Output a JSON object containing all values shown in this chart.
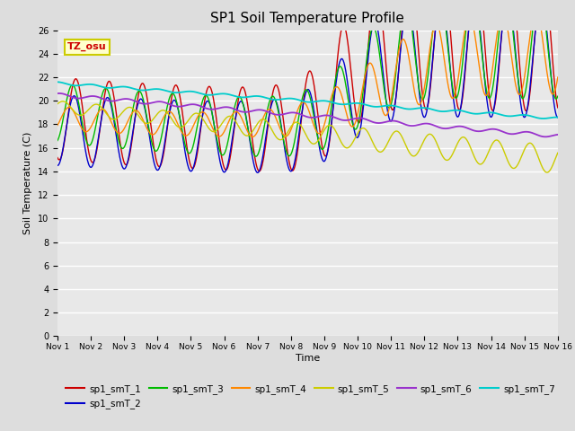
{
  "title": "SP1 Soil Temperature Profile",
  "xlabel": "Time",
  "ylabel": "Soil Temperature (C)",
  "ylim": [
    0,
    26
  ],
  "yticks": [
    0,
    2,
    4,
    6,
    8,
    10,
    12,
    14,
    16,
    18,
    20,
    22,
    24,
    26
  ],
  "xtick_labels": [
    "Nov 1",
    "Nov 2",
    "Nov 3",
    "Nov 4",
    "Nov 5",
    "Nov 6",
    "Nov 7",
    "Nov 8",
    "Nov 9",
    "Nov 10",
    "Nov 11",
    "Nov 12",
    "Nov 13",
    "Nov 14",
    "Nov 15",
    "Nov 16"
  ],
  "series_colors": {
    "sp1_smT_1": "#cc0000",
    "sp1_smT_2": "#0000cc",
    "sp1_smT_3": "#00bb00",
    "sp1_smT_4": "#ff8800",
    "sp1_smT_5": "#cccc00",
    "sp1_smT_6": "#9933cc",
    "sp1_smT_7": "#00cccc"
  },
  "annotation_text": "TZ_osu",
  "annotation_color": "#cc0000",
  "annotation_bg": "#ffffcc",
  "annotation_border": "#cccc00",
  "fig_bg": "#dddddd",
  "plot_bg": "#e8e8e8",
  "n_points": 1440,
  "days": 15
}
